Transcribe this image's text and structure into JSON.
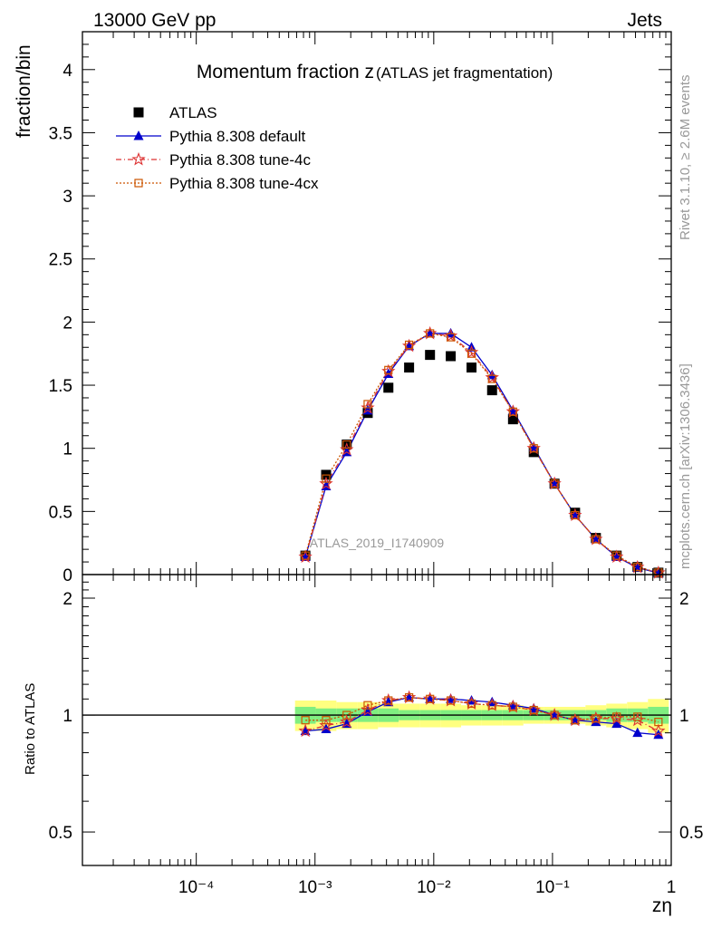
{
  "header": {
    "left": "13000 GeV pp",
    "right": "Jets",
    "side_top": "Rivet 3.1.10, ≥ 2.6M events",
    "side_bottom": "mcplots.cern.ch [arXiv:1306.3436]"
  },
  "chart_data": {
    "type": "scatter",
    "title": "Momentum fraction z",
    "subtitle": "(ATLAS jet fragmentation)",
    "watermark": "ATLAS_2019_I1740909",
    "xlabel": "zη",
    "ylabel": "fraction/bin",
    "ratio_ylabel": "Ratio to ATLAS",
    "x_scale": "log",
    "xlim": [
      1.1e-05,
      1
    ],
    "ylim": [
      0,
      4.3
    ],
    "ratio_ylim": [
      0.41,
      2.3
    ],
    "ratio_scale": "log",
    "x_ticks": [
      "10⁻⁴",
      "10⁻³",
      "10⁻²",
      "10⁻¹",
      "1"
    ],
    "y_ticks": [
      "0",
      "0.5",
      "1",
      "1.5",
      "2",
      "2.5",
      "3",
      "3.5",
      "4"
    ],
    "ratio_ticks": [
      "0.5",
      "1",
      "2"
    ],
    "legend_position": "top-left",
    "x": [
      0.00083,
      0.00124,
      0.00185,
      0.00278,
      0.00415,
      0.0062,
      0.0093,
      0.0139,
      0.0208,
      0.031,
      0.0465,
      0.0695,
      0.104,
      0.155,
      0.232,
      0.347,
      0.52,
      0.78
    ],
    "series": [
      {
        "name": "ATLAS",
        "color": "#000000",
        "marker": "filled-square",
        "values": [
          0.15,
          0.79,
          1.03,
          1.28,
          1.48,
          1.64,
          1.74,
          1.73,
          1.64,
          1.46,
          1.23,
          0.97,
          0.72,
          0.49,
          0.29,
          0.15,
          0.06,
          0.015
        ]
      },
      {
        "name": "Pythia 8.308 default",
        "color": "#0000cc",
        "marker": "filled-triangle",
        "line": "solid",
        "values": [
          0.14,
          0.7,
          0.97,
          1.3,
          1.59,
          1.81,
          1.91,
          1.91,
          1.8,
          1.58,
          1.3,
          1.01,
          0.72,
          0.47,
          0.28,
          0.14,
          0.055,
          0.013
        ]
      },
      {
        "name": "Pythia 8.308 tune-4c",
        "color": "#dd3333",
        "marker": "open-star",
        "line": "dashdot",
        "values": [
          0.14,
          0.72,
          0.99,
          1.32,
          1.61,
          1.81,
          1.91,
          1.89,
          1.76,
          1.56,
          1.29,
          1.0,
          0.72,
          0.47,
          0.28,
          0.14,
          0.058,
          0.014
        ]
      },
      {
        "name": "Pythia 8.308 tune-4cx",
        "color": "#cc5500",
        "marker": "open-square",
        "line": "dotted",
        "values": [
          0.15,
          0.76,
          1.03,
          1.35,
          1.62,
          1.82,
          1.91,
          1.88,
          1.75,
          1.55,
          1.29,
          1.0,
          0.72,
          0.47,
          0.28,
          0.15,
          0.06,
          0.015
        ]
      }
    ],
    "ratio_series": [
      {
        "name": "Pythia 8.308 default",
        "values": [
          0.91,
          0.92,
          0.95,
          1.02,
          1.08,
          1.11,
          1.1,
          1.1,
          1.09,
          1.08,
          1.06,
          1.04,
          1.0,
          0.97,
          0.96,
          0.95,
          0.9,
          0.89
        ]
      },
      {
        "name": "Pythia 8.308 tune-4c",
        "values": [
          0.91,
          0.94,
          0.96,
          1.03,
          1.09,
          1.11,
          1.1,
          1.09,
          1.07,
          1.06,
          1.05,
          1.03,
          1.0,
          0.97,
          0.98,
          0.98,
          0.97,
          0.91
        ]
      },
      {
        "name": "Pythia 8.308 tune-4cx",
        "values": [
          0.97,
          0.97,
          1.0,
          1.06,
          1.09,
          1.11,
          1.1,
          1.09,
          1.07,
          1.06,
          1.05,
          1.03,
          1.0,
          0.97,
          0.98,
          0.99,
          0.99,
          0.96
        ]
      }
    ],
    "ratio_band": {
      "yellow_halfwidth": [
        0.09,
        0.09,
        0.08,
        0.08,
        0.07,
        0.07,
        0.07,
        0.07,
        0.06,
        0.06,
        0.06,
        0.05,
        0.05,
        0.05,
        0.06,
        0.07,
        0.08,
        0.1
      ],
      "green_halfwidth": [
        0.05,
        0.04,
        0.04,
        0.04,
        0.04,
        0.03,
        0.03,
        0.03,
        0.03,
        0.03,
        0.03,
        0.03,
        0.03,
        0.03,
        0.03,
        0.04,
        0.04,
        0.05
      ]
    }
  }
}
